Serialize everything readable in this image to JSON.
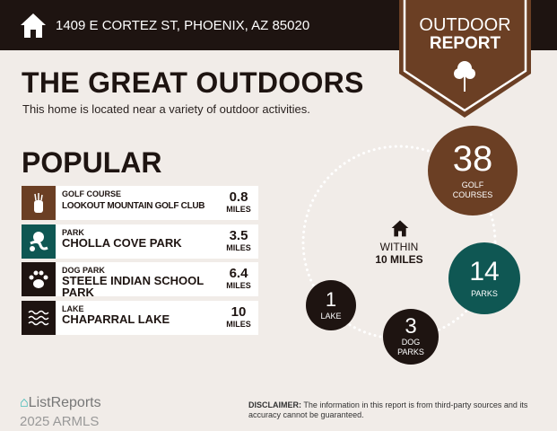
{
  "header": {
    "address": "1409 E CORTEZ ST, PHOENIX, AZ 85020",
    "icon": "home-icon"
  },
  "badge": {
    "line1": "OUTDOOR",
    "line2": "REPORT",
    "icon": "tree-icon",
    "color": "#6b3f24"
  },
  "title": "THE GREAT OUTDOORS",
  "subtitle": "This home is located near a variety of outdoor activities.",
  "popular": {
    "heading": "POPULAR",
    "items": [
      {
        "category": "GOLF COURSE",
        "name": "LOOKOUT MOUNTAIN GOLF CLUB",
        "distance": "0.8",
        "unit": "MILES",
        "icon": "golf-bag-icon",
        "color": "#6b3f24"
      },
      {
        "category": "PARK",
        "name": "CHOLLA COVE PARK",
        "distance": "3.5",
        "unit": "MILES",
        "icon": "park-icon",
        "color": "#0f5753"
      },
      {
        "category": "DOG PARK",
        "name": "STEELE INDIAN SCHOOL PARK",
        "distance": "6.4",
        "unit": "MILES",
        "icon": "paw-icon",
        "color": "#1e1411"
      },
      {
        "category": "LAKE",
        "name": "CHAPARRAL LAKE",
        "distance": "10",
        "unit": "MILES",
        "icon": "waves-icon",
        "color": "#1e1411"
      }
    ]
  },
  "summary": {
    "within_line1": "WITHIN",
    "within_line2": "10 MILES",
    "golf": {
      "count": "38",
      "label1": "GOLF",
      "label2": "COURSES",
      "color": "#6b3f24"
    },
    "parks": {
      "count": "14",
      "label": "PARKS",
      "color": "#0f5753"
    },
    "dog_parks": {
      "count": "3",
      "label1": "DOG",
      "label2": "PARKS",
      "color": "#1e1411"
    },
    "lake": {
      "count": "1",
      "label": "LAKE",
      "color": "#1e1411"
    }
  },
  "footer": {
    "logo": "ListReports",
    "watermark": "2025 ARMLS",
    "disclaimer_label": "DISCLAIMER:",
    "disclaimer_text": " The information in this report is from third-party sources and its accuracy cannot be guaranteed."
  }
}
